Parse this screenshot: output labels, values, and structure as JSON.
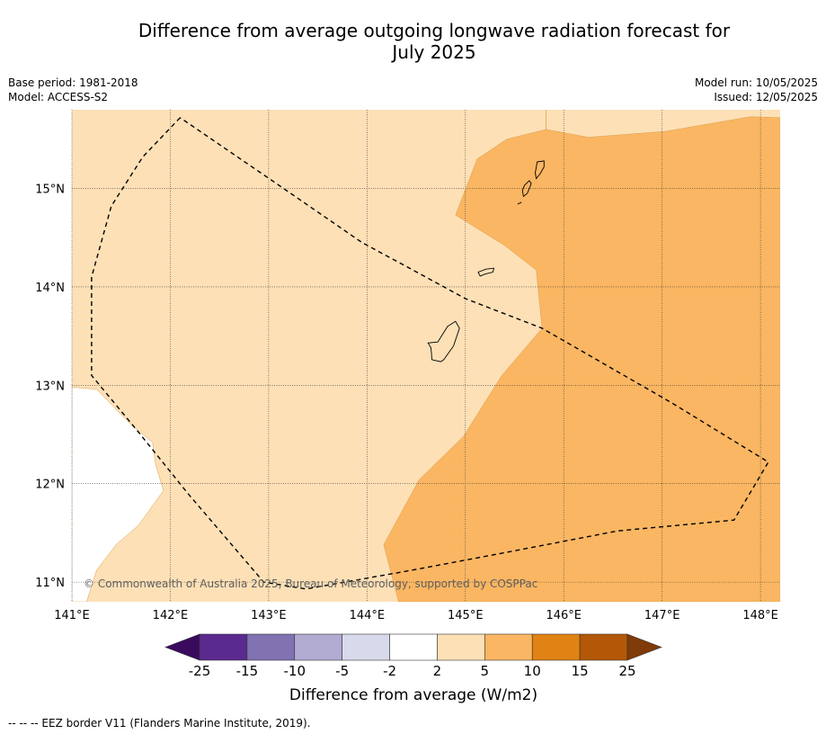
{
  "title": {
    "line1": "Difference from average outgoing longwave radiation forecast for",
    "line2": "July 2025"
  },
  "meta": {
    "base_period": "Base period: 1981-2018",
    "model": "Model: ACCESS-S2",
    "model_run": "Model run: 10/05/2025",
    "issued": "Issued: 12/05/2025"
  },
  "copyright": "© Commonwealth of Australia 2025, Bureau of Meteorology, supported by COSPPac",
  "footnote": "--  --  -- EEZ border V11 (Flanders Marine Institute, 2019).",
  "colors": {
    "anomaly_2_5": "#fde0b6",
    "anomaly_5_10": "#fab662",
    "below_2": "#ffffff",
    "eez_border": "#000000",
    "coastline": "#000000"
  },
  "chart_data": {
    "type": "heatmap",
    "xlim": [
      141.0,
      148.2
    ],
    "ylim": [
      10.8,
      15.8
    ],
    "x_ticks": [
      141,
      142,
      143,
      144,
      145,
      146,
      147,
      148
    ],
    "x_tick_labels": [
      "141°E",
      "142°E",
      "143°E",
      "144°E",
      "145°E",
      "146°E",
      "147°E",
      "148°E"
    ],
    "y_ticks": [
      11,
      12,
      13,
      14,
      15
    ],
    "y_tick_labels": [
      "11°N",
      "12°N",
      "13°N",
      "14°N",
      "15°N"
    ],
    "grid": true,
    "regions": [
      {
        "category": "5 to 10",
        "color": "#fab662",
        "polygon": [
          [
            145.82,
            15.8
          ],
          [
            145.82,
            15.6
          ],
          [
            146.25,
            15.52
          ],
          [
            147.03,
            15.58
          ],
          [
            147.9,
            15.73
          ],
          [
            148.2,
            15.72
          ],
          [
            148.2,
            10.8
          ],
          [
            144.32,
            10.8
          ],
          [
            144.17,
            11.38
          ],
          [
            144.53,
            12.04
          ],
          [
            144.98,
            12.48
          ],
          [
            145.37,
            13.1
          ],
          [
            145.78,
            13.58
          ],
          [
            145.72,
            14.17
          ],
          [
            145.4,
            14.42
          ],
          [
            144.9,
            14.73
          ],
          [
            145.12,
            15.3
          ],
          [
            145.42,
            15.5
          ],
          [
            145.82,
            15.6
          ]
        ]
      },
      {
        "category": "-2 to 2",
        "color": "#ffffff",
        "polygon": [
          [
            141.0,
            12.98
          ],
          [
            141.25,
            12.96
          ],
          [
            141.6,
            12.6
          ],
          [
            141.82,
            12.42
          ],
          [
            141.85,
            12.2
          ],
          [
            141.93,
            11.93
          ],
          [
            141.68,
            11.58
          ],
          [
            141.45,
            11.38
          ],
          [
            141.25,
            11.12
          ],
          [
            141.15,
            10.8
          ],
          [
            141.0,
            10.8
          ]
        ]
      }
    ],
    "coastlines": [
      {
        "name": "Guam",
        "points": [
          [
            144.82,
            13.6
          ],
          [
            144.9,
            13.65
          ],
          [
            144.94,
            13.58
          ],
          [
            144.88,
            13.4
          ],
          [
            144.78,
            13.26
          ],
          [
            144.75,
            13.24
          ],
          [
            144.66,
            13.26
          ],
          [
            144.65,
            13.38
          ],
          [
            144.62,
            13.43
          ],
          [
            144.72,
            13.44
          ],
          [
            144.77,
            13.52
          ]
        ]
      },
      {
        "name": "Rota",
        "points": [
          [
            145.13,
            14.15
          ],
          [
            145.21,
            14.18
          ],
          [
            145.29,
            14.19
          ],
          [
            145.28,
            14.15
          ],
          [
            145.2,
            14.13
          ],
          [
            145.15,
            14.11
          ]
        ]
      },
      {
        "name": "Tinian",
        "points": [
          [
            145.6,
            15.03
          ],
          [
            145.65,
            15.08
          ],
          [
            145.67,
            15.05
          ],
          [
            145.63,
            14.95
          ],
          [
            145.59,
            14.92
          ],
          [
            145.58,
            14.98
          ]
        ]
      },
      {
        "name": "Saipan",
        "points": [
          [
            145.73,
            15.27
          ],
          [
            145.8,
            15.28
          ],
          [
            145.8,
            15.22
          ],
          [
            145.76,
            15.15
          ],
          [
            145.72,
            15.1
          ],
          [
            145.71,
            15.16
          ]
        ]
      },
      {
        "name": "Aguijan",
        "points": [
          [
            145.53,
            14.84
          ],
          [
            145.57,
            14.86
          ]
        ]
      }
    ],
    "eez_border": [
      [
        142.1,
        15.72
      ],
      [
        141.72,
        15.32
      ],
      [
        141.4,
        14.82
      ],
      [
        141.2,
        14.1
      ],
      [
        141.2,
        13.1
      ],
      [
        141.68,
        12.52
      ],
      [
        142.18,
        11.9
      ],
      [
        142.95,
        11.0
      ],
      [
        143.38,
        10.93
      ],
      [
        144.45,
        11.12
      ],
      [
        145.3,
        11.28
      ],
      [
        146.55,
        11.52
      ],
      [
        147.73,
        11.63
      ],
      [
        148.08,
        12.22
      ],
      [
        147.1,
        12.82
      ],
      [
        145.78,
        13.58
      ],
      [
        145.0,
        13.88
      ],
      [
        144.45,
        14.18
      ],
      [
        143.95,
        14.45
      ],
      [
        143.08,
        15.05
      ],
      [
        142.1,
        15.72
      ]
    ],
    "colorbar": {
      "label": "Difference from average (W/m2)",
      "tick_labels": [
        "-25",
        "-15",
        "-10",
        "-5",
        "-2",
        "2",
        "5",
        "10",
        "15",
        "25"
      ],
      "colors": [
        "#3a0a5e",
        "#5b2a8f",
        "#8172b2",
        "#b2abd2",
        "#d8daeb",
        "#ffffff",
        "#fde0b6",
        "#fab662",
        "#e08214",
        "#b35806",
        "#7f3b08"
      ],
      "extend": "both"
    }
  }
}
